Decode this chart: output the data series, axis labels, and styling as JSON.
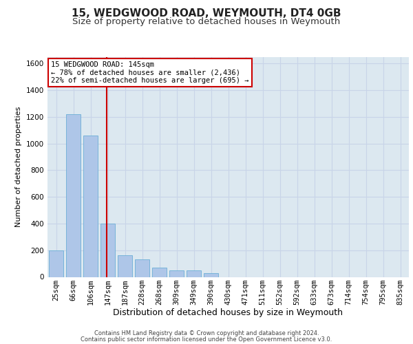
{
  "title1": "15, WEDGWOOD ROAD, WEYMOUTH, DT4 0GB",
  "title2": "Size of property relative to detached houses in Weymouth",
  "xlabel": "Distribution of detached houses by size in Weymouth",
  "ylabel": "Number of detached properties",
  "categories": [
    "25sqm",
    "66sqm",
    "106sqm",
    "147sqm",
    "187sqm",
    "228sqm",
    "268sqm",
    "309sqm",
    "349sqm",
    "390sqm",
    "430sqm",
    "471sqm",
    "511sqm",
    "552sqm",
    "592sqm",
    "633sqm",
    "673sqm",
    "714sqm",
    "754sqm",
    "795sqm",
    "835sqm"
  ],
  "values": [
    200,
    1220,
    1060,
    400,
    160,
    130,
    70,
    50,
    50,
    30,
    0,
    0,
    0,
    0,
    0,
    0,
    0,
    0,
    0,
    0,
    0
  ],
  "bar_color": "#aec6e8",
  "bar_edge_color": "#6baed6",
  "grid_color": "#c8d4e8",
  "background_color": "#dce8f0",
  "marker_line_color": "#cc0000",
  "annotation_line1": "15 WEDGWOOD ROAD: 145sqm",
  "annotation_line2": "← 78% of detached houses are smaller (2,436)",
  "annotation_line3": "22% of semi-detached houses are larger (695) →",
  "annotation_box_color": "#cc0000",
  "ylim": [
    0,
    1650
  ],
  "yticks": [
    0,
    200,
    400,
    600,
    800,
    1000,
    1200,
    1400,
    1600
  ],
  "footer1": "Contains HM Land Registry data © Crown copyright and database right 2024.",
  "footer2": "Contains public sector information licensed under the Open Government Licence v3.0.",
  "title_fontsize": 11,
  "subtitle_fontsize": 9.5,
  "tick_fontsize": 7.5,
  "xlabel_fontsize": 9,
  "ylabel_fontsize": 8,
  "annotation_fontsize": 7.5,
  "footer_fontsize": 6
}
